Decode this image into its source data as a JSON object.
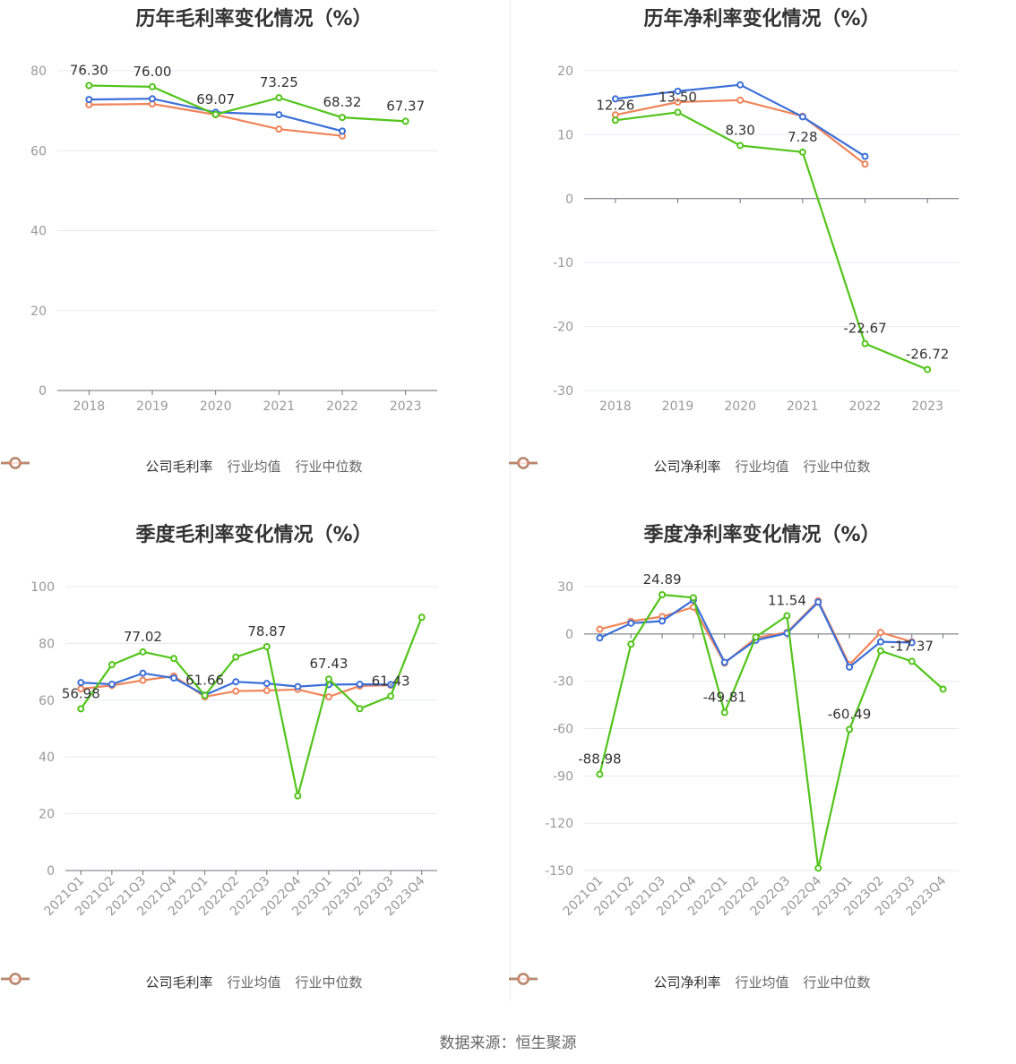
{
  "colors": {
    "company": "#52c41a",
    "industry_avg": "#3b6fd8",
    "industry_median": "#f0845a",
    "grid": "#e6e8ef",
    "axis": "#6e7079",
    "tick_text": "#999999",
    "label_text": "#333333"
  },
  "source_text": "数据来源：恒生聚源",
  "chart_data": [
    {
      "type": "line",
      "title": "历年毛利率变化情况（%）",
      "categories": [
        "2018",
        "2019",
        "2020",
        "2021",
        "2022",
        "2023"
      ],
      "ylim": [
        0,
        80
      ],
      "yticks": [
        0,
        20,
        40,
        60,
        80
      ],
      "rotate_x": false,
      "grid": true,
      "legend_position": "bottom",
      "series": [
        {
          "name": "公司毛利率",
          "key": "company",
          "values": [
            76.3,
            76.0,
            69.07,
            73.25,
            68.32,
            67.37
          ],
          "label_index": [
            0,
            1,
            2,
            3,
            4,
            5
          ]
        },
        {
          "name": "行业均值",
          "key": "industry_avg",
          "values": [
            72.8,
            73.0,
            69.6,
            69.0,
            64.9,
            null
          ],
          "label_index": []
        },
        {
          "name": "行业中位数",
          "key": "industry_median",
          "values": [
            71.5,
            71.7,
            69.0,
            65.4,
            63.7,
            null
          ],
          "label_index": []
        }
      ],
      "data_labels": [
        "76.30",
        "76.00",
        "69.07",
        "73.25",
        "68.32",
        "67.37"
      ]
    },
    {
      "type": "line",
      "title": "历年净利率变化情况（%）",
      "categories": [
        "2018",
        "2019",
        "2020",
        "2021",
        "2022",
        "2023"
      ],
      "ylim": [
        -30,
        20
      ],
      "yticks": [
        -30,
        -20,
        -10,
        0,
        10,
        20
      ],
      "rotate_x": false,
      "grid": true,
      "legend_position": "bottom",
      "series": [
        {
          "name": "公司净利率",
          "key": "company",
          "values": [
            12.26,
            13.5,
            8.3,
            7.28,
            -22.67,
            -26.72
          ],
          "label_index": [
            0,
            1,
            2,
            3,
            4,
            5
          ]
        },
        {
          "name": "行业均值",
          "key": "industry_avg",
          "values": [
            15.6,
            16.8,
            17.8,
            12.8,
            6.6,
            null
          ],
          "label_index": []
        },
        {
          "name": "行业中位数",
          "key": "industry_median",
          "values": [
            13.1,
            15.1,
            15.4,
            12.9,
            5.4,
            null
          ],
          "label_index": []
        }
      ],
      "data_labels": [
        "12.26",
        "13.50",
        "8.30",
        "7.28",
        "-22.67",
        "-26.72"
      ]
    },
    {
      "type": "line",
      "title": "季度毛利率变化情况（%）",
      "categories": [
        "2021Q1",
        "2021Q2",
        "2021Q3",
        "2021Q4",
        "2022Q1",
        "2022Q2",
        "2022Q3",
        "2022Q4",
        "2023Q1",
        "2023Q2",
        "2023Q3",
        "2023Q4"
      ],
      "ylim": [
        0,
        100
      ],
      "yticks": [
        0,
        20,
        40,
        60,
        80,
        100
      ],
      "rotate_x": true,
      "grid": true,
      "legend_position": "bottom",
      "series": [
        {
          "name": "公司毛利率",
          "key": "company",
          "values": [
            56.98,
            72.5,
            77.02,
            74.7,
            61.66,
            75.2,
            78.87,
            26.3,
            67.43,
            57.0,
            61.43,
            89.2
          ],
          "label_index": [
            0,
            2,
            4,
            6,
            8,
            10
          ]
        },
        {
          "name": "行业均值",
          "key": "industry_avg",
          "values": [
            66.2,
            65.6,
            69.5,
            67.8,
            61.8,
            66.5,
            65.9,
            64.8,
            65.5,
            65.6,
            65.5,
            null
          ],
          "label_index": []
        },
        {
          "name": "行业中位数",
          "key": "industry_median",
          "values": [
            64.0,
            65.2,
            67.0,
            68.5,
            61.2,
            63.2,
            63.4,
            63.8,
            61.2,
            65.0,
            65.3,
            null
          ],
          "label_index": []
        }
      ],
      "data_labels": [
        "56.98",
        "77.02",
        "61.66",
        "78.87",
        "67.43",
        "61.43"
      ]
    },
    {
      "type": "line",
      "title": "季度净利率变化情况（%）",
      "categories": [
        "2021Q1",
        "2021Q2",
        "2021Q3",
        "2021Q4",
        "2022Q1",
        "2022Q2",
        "2022Q3",
        "2022Q4",
        "2023Q1",
        "2023Q2",
        "2023Q3",
        "2023Q4"
      ],
      "ylim": [
        -150,
        30
      ],
      "yticks": [
        -150,
        -120,
        -90,
        -60,
        -30,
        0,
        30
      ],
      "rotate_x": true,
      "grid": true,
      "legend_position": "bottom",
      "series": [
        {
          "name": "公司净利率",
          "key": "company",
          "values": [
            -88.98,
            -6.5,
            24.89,
            23.0,
            -49.81,
            -2.0,
            11.54,
            -148.5,
            -60.49,
            -10.7,
            -17.37,
            -35.0
          ],
          "label_index": [
            0,
            2,
            4,
            6,
            8,
            10
          ]
        },
        {
          "name": "行业均值",
          "key": "industry_avg",
          "values": [
            -2.5,
            6.8,
            8.2,
            21.5,
            -18.0,
            -4.0,
            0.5,
            20.2,
            -21.0,
            -5.0,
            -5.5,
            null
          ],
          "label_index": []
        },
        {
          "name": "行业中位数",
          "key": "industry_median",
          "values": [
            3.0,
            8.0,
            11.0,
            17.0,
            -18.5,
            -2.5,
            1.0,
            21.0,
            -19.5,
            1.0,
            -5.0,
            null
          ],
          "label_index": []
        }
      ],
      "data_labels": [
        "-88.98",
        "24.89",
        "-49.81",
        "11.54",
        "-60.49",
        "-17.37"
      ]
    }
  ]
}
